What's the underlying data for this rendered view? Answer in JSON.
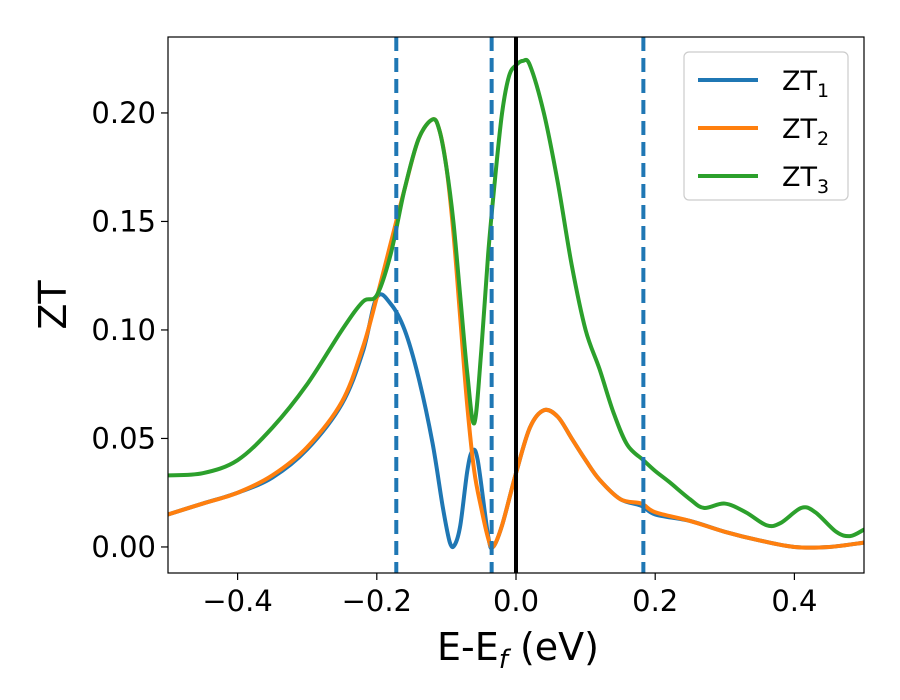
{
  "chart_data": {
    "type": "line",
    "xlabel_main": "E-E",
    "xlabel_sub": "f",
    "xlabel_unit": " (eV)",
    "ylabel": "ZT",
    "xlim": [
      -0.5,
      0.5
    ],
    "ylim": [
      -0.012,
      0.235
    ],
    "x_ticks": [
      -0.4,
      -0.2,
      0.0,
      0.2,
      0.4
    ],
    "x_tick_labels": [
      "−0.4",
      "−0.2",
      "0.0",
      "0.2",
      "0.4"
    ],
    "y_ticks": [
      0.0,
      0.05,
      0.1,
      0.15,
      0.2
    ],
    "y_tick_labels": [
      "0.00",
      "0.05",
      "0.10",
      "0.15",
      "0.20"
    ],
    "grid": false,
    "legend_position": "top-right",
    "vlines": [
      {
        "x": -0.172,
        "style": "dashed",
        "color": "#1f77b4"
      },
      {
        "x": -0.035,
        "style": "dashed",
        "color": "#1f77b4"
      },
      {
        "x": 0.183,
        "style": "dashed",
        "color": "#1f77b4"
      },
      {
        "x": 0.0,
        "style": "solid",
        "color": "#000000"
      }
    ],
    "series": [
      {
        "name": "ZT",
        "sub": "1",
        "color": "#1f77b4",
        "points": [
          [
            -0.5,
            0.015
          ],
          [
            -0.45,
            0.02
          ],
          [
            -0.4,
            0.025
          ],
          [
            -0.35,
            0.032
          ],
          [
            -0.3,
            0.045
          ],
          [
            -0.25,
            0.066
          ],
          [
            -0.22,
            0.09
          ],
          [
            -0.2,
            0.115
          ],
          [
            -0.18,
            0.112
          ],
          [
            -0.16,
            0.1
          ],
          [
            -0.14,
            0.078
          ],
          [
            -0.12,
            0.048
          ],
          [
            -0.105,
            0.018
          ],
          [
            -0.095,
            0.002
          ],
          [
            -0.088,
            0.001
          ],
          [
            -0.08,
            0.01
          ],
          [
            -0.07,
            0.035
          ],
          [
            -0.063,
            0.044
          ],
          [
            -0.055,
            0.04
          ],
          [
            -0.04,
            0.005
          ],
          [
            -0.033,
            0.0
          ],
          [
            -0.02,
            0.01
          ],
          [
            0.0,
            0.034
          ],
          [
            0.02,
            0.055
          ],
          [
            0.04,
            0.063
          ],
          [
            0.06,
            0.06
          ],
          [
            0.08,
            0.05
          ],
          [
            0.1,
            0.04
          ],
          [
            0.12,
            0.031
          ],
          [
            0.15,
            0.022
          ],
          [
            0.18,
            0.019
          ],
          [
            0.2,
            0.015
          ],
          [
            0.25,
            0.012
          ],
          [
            0.3,
            0.007
          ],
          [
            0.35,
            0.003
          ],
          [
            0.4,
            0.0
          ],
          [
            0.45,
            0.0
          ],
          [
            0.5,
            0.002
          ]
        ]
      },
      {
        "name": "ZT",
        "sub": "2",
        "color": "#ff7f0e",
        "points": [
          [
            -0.5,
            0.015
          ],
          [
            -0.45,
            0.02
          ],
          [
            -0.4,
            0.025
          ],
          [
            -0.35,
            0.033
          ],
          [
            -0.3,
            0.046
          ],
          [
            -0.25,
            0.067
          ],
          [
            -0.22,
            0.092
          ],
          [
            -0.2,
            0.115
          ],
          [
            -0.18,
            0.14
          ],
          [
            -0.16,
            0.165
          ],
          [
            -0.14,
            0.188
          ],
          [
            -0.12,
            0.197
          ],
          [
            -0.11,
            0.192
          ],
          [
            -0.1,
            0.175
          ],
          [
            -0.09,
            0.145
          ],
          [
            -0.08,
            0.105
          ],
          [
            -0.07,
            0.065
          ],
          [
            -0.06,
            0.035
          ],
          [
            -0.05,
            0.018
          ],
          [
            -0.04,
            0.004
          ],
          [
            -0.033,
            0.0
          ],
          [
            -0.02,
            0.01
          ],
          [
            0.0,
            0.034
          ],
          [
            0.02,
            0.055
          ],
          [
            0.04,
            0.063
          ],
          [
            0.06,
            0.06
          ],
          [
            0.08,
            0.05
          ],
          [
            0.1,
            0.04
          ],
          [
            0.12,
            0.031
          ],
          [
            0.15,
            0.022
          ],
          [
            0.18,
            0.02
          ],
          [
            0.2,
            0.016
          ],
          [
            0.25,
            0.012
          ],
          [
            0.3,
            0.007
          ],
          [
            0.35,
            0.003
          ],
          [
            0.4,
            0.0
          ],
          [
            0.45,
            0.0
          ],
          [
            0.5,
            0.002
          ]
        ]
      },
      {
        "name": "ZT",
        "sub": "3",
        "color": "#2ca02c",
        "points": [
          [
            -0.5,
            0.033
          ],
          [
            -0.45,
            0.034
          ],
          [
            -0.4,
            0.04
          ],
          [
            -0.35,
            0.055
          ],
          [
            -0.3,
            0.075
          ],
          [
            -0.25,
            0.1
          ],
          [
            -0.22,
            0.113
          ],
          [
            -0.2,
            0.116
          ],
          [
            -0.18,
            0.135
          ],
          [
            -0.16,
            0.165
          ],
          [
            -0.14,
            0.188
          ],
          [
            -0.12,
            0.197
          ],
          [
            -0.11,
            0.192
          ],
          [
            -0.1,
            0.175
          ],
          [
            -0.09,
            0.15
          ],
          [
            -0.08,
            0.115
          ],
          [
            -0.07,
            0.08
          ],
          [
            -0.06,
            0.057
          ],
          [
            -0.05,
            0.09
          ],
          [
            -0.04,
            0.135
          ],
          [
            -0.03,
            0.17
          ],
          [
            -0.02,
            0.2
          ],
          [
            -0.01,
            0.217
          ],
          [
            0.0,
            0.222
          ],
          [
            0.01,
            0.224
          ],
          [
            0.02,
            0.222
          ],
          [
            0.04,
            0.2
          ],
          [
            0.06,
            0.168
          ],
          [
            0.08,
            0.13
          ],
          [
            0.1,
            0.1
          ],
          [
            0.12,
            0.082
          ],
          [
            0.14,
            0.062
          ],
          [
            0.16,
            0.047
          ],
          [
            0.183,
            0.04
          ],
          [
            0.2,
            0.035
          ],
          [
            0.22,
            0.03
          ],
          [
            0.25,
            0.022
          ],
          [
            0.27,
            0.018
          ],
          [
            0.3,
            0.02
          ],
          [
            0.33,
            0.016
          ],
          [
            0.36,
            0.01
          ],
          [
            0.38,
            0.011
          ],
          [
            0.41,
            0.018
          ],
          [
            0.43,
            0.016
          ],
          [
            0.46,
            0.007
          ],
          [
            0.48,
            0.005
          ],
          [
            0.5,
            0.008
          ]
        ]
      }
    ]
  }
}
